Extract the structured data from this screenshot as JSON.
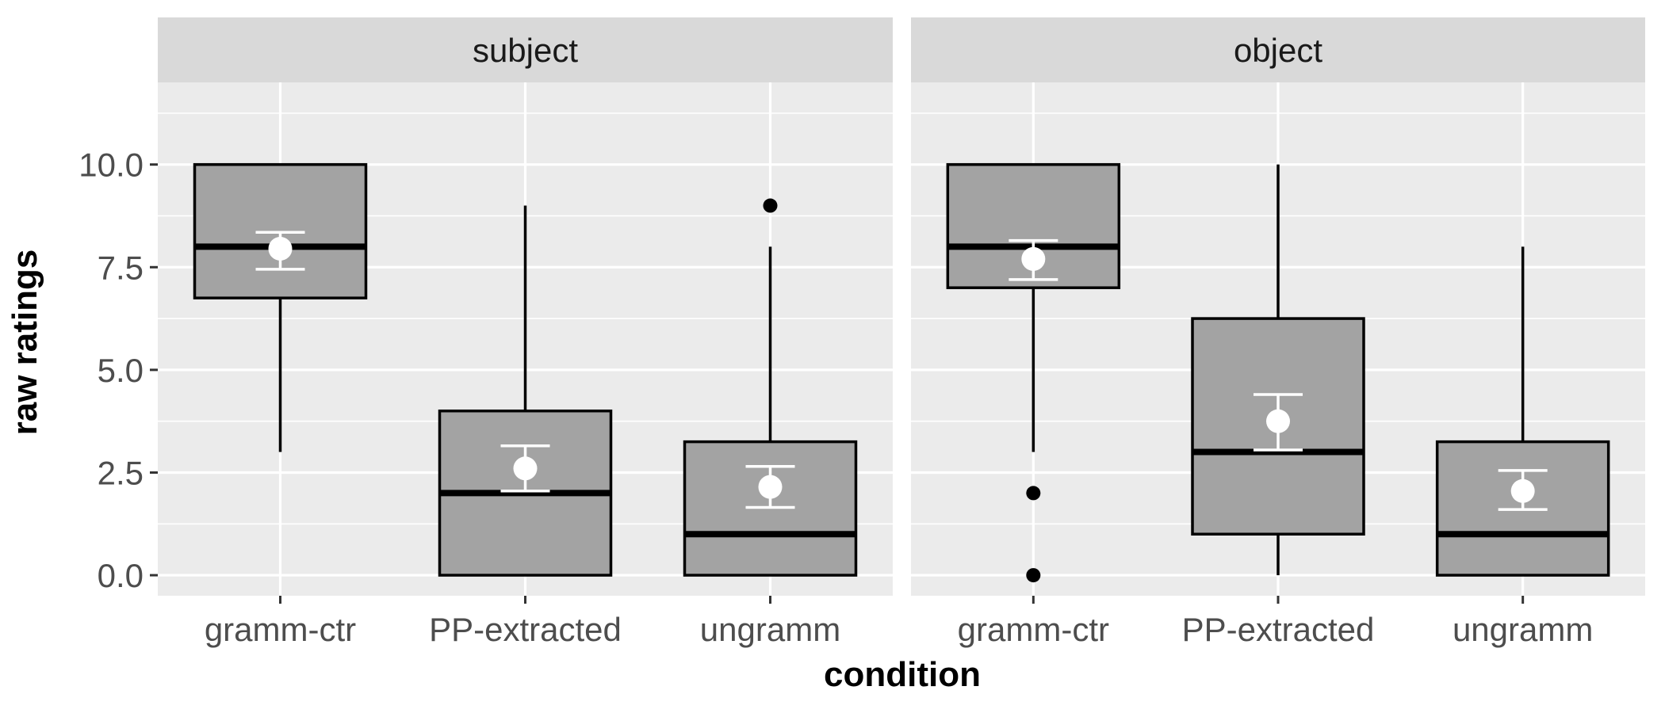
{
  "chart_data": {
    "type": "boxplot",
    "xlabel": "condition",
    "ylabel": "raw ratings",
    "ylim": [
      -0.5,
      12.0
    ],
    "yticks": [
      0.0,
      2.5,
      5.0,
      7.5,
      10.0
    ],
    "ytick_labels": [
      "0.0",
      "2.5",
      "5.0",
      "7.5",
      "10.0"
    ],
    "categories": [
      "gramm-ctr",
      "PP-extracted",
      "ungramm"
    ],
    "colors": {
      "panel_bg": "#ebebeb",
      "strip_bg": "#d9d9d9",
      "grid": "#ffffff",
      "box_fill": "#a3a3a3",
      "box_line": "#000000",
      "mean_marker": "#ffffff"
    },
    "facets": [
      {
        "label": "subject",
        "boxes": [
          {
            "category": "gramm-ctr",
            "min": 3.0,
            "q1": 6.75,
            "median": 8.0,
            "q3": 10.0,
            "max": 10.0,
            "outliers": [],
            "mean": 7.95,
            "ci_low": 7.45,
            "ci_high": 8.35
          },
          {
            "category": "PP-extracted",
            "min": 0.0,
            "q1": 0.0,
            "median": 2.0,
            "q3": 4.0,
            "max": 9.0,
            "outliers": [],
            "mean": 2.6,
            "ci_low": 2.05,
            "ci_high": 3.15
          },
          {
            "category": "ungramm",
            "min": 0.0,
            "q1": 0.0,
            "median": 1.0,
            "q3": 3.25,
            "max": 8.0,
            "outliers": [
              9.0
            ],
            "mean": 2.15,
            "ci_low": 1.65,
            "ci_high": 2.65
          }
        ]
      },
      {
        "label": "object",
        "boxes": [
          {
            "category": "gramm-ctr",
            "min": 3.0,
            "q1": 7.0,
            "median": 8.0,
            "q3": 10.0,
            "max": 10.0,
            "outliers": [
              2.0,
              0.0
            ],
            "mean": 7.7,
            "ci_low": 7.2,
            "ci_high": 8.15
          },
          {
            "category": "PP-extracted",
            "min": 0.0,
            "q1": 1.0,
            "median": 3.0,
            "q3": 6.25,
            "max": 10.0,
            "outliers": [],
            "mean": 3.75,
            "ci_low": 3.05,
            "ci_high": 4.4
          },
          {
            "category": "ungramm",
            "min": 0.0,
            "q1": 0.0,
            "median": 1.0,
            "q3": 3.25,
            "max": 8.0,
            "outliers": [],
            "mean": 2.05,
            "ci_low": 1.6,
            "ci_high": 2.55
          }
        ]
      }
    ]
  }
}
